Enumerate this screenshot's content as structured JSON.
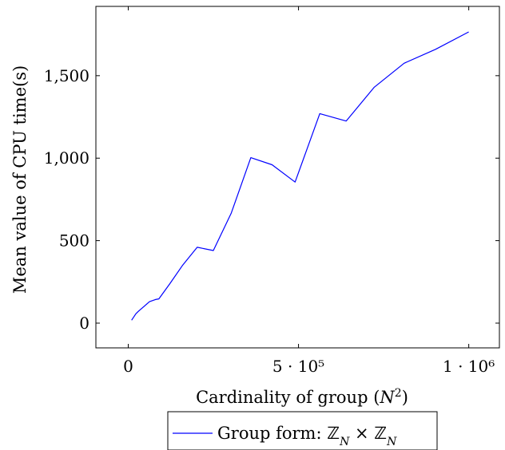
{
  "chart_data": {
    "type": "line",
    "xlabel": "Cardinality of group (N²)",
    "ylabel": "Mean value of CPU time(s)",
    "xlim": [
      -95000,
      1090000
    ],
    "ylim": [
      -150,
      1920
    ],
    "xticks": [
      {
        "value": 0,
        "label": "0"
      },
      {
        "value": 500000,
        "label": "5 · 10⁵"
      },
      {
        "value": 1000000,
        "label": "1 · 10⁶"
      }
    ],
    "yticks": [
      {
        "value": 0,
        "label": "0"
      },
      {
        "value": 500,
        "label": "500"
      },
      {
        "value": 1000,
        "label": "1,000"
      },
      {
        "value": 1500,
        "label": "1,500"
      }
    ],
    "grid": false,
    "legend_position": "bottom-center",
    "series": [
      {
        "name": "Group form: ℤN × ℤN",
        "color": "#0000ff",
        "x": [
          10000,
          22500,
          30000,
          40000,
          62500,
          80000,
          90000,
          122500,
          160000,
          202500,
          250000,
          302500,
          360000,
          422500,
          490000,
          562500,
          640000,
          722500,
          810000,
          902500,
          1000000
        ],
        "y": [
          18,
          57,
          72,
          90,
          130,
          143,
          147,
          240,
          352,
          460,
          440,
          667,
          1003,
          960,
          855,
          1270,
          1225,
          1430,
          1575,
          1660,
          1765
        ]
      }
    ]
  }
}
